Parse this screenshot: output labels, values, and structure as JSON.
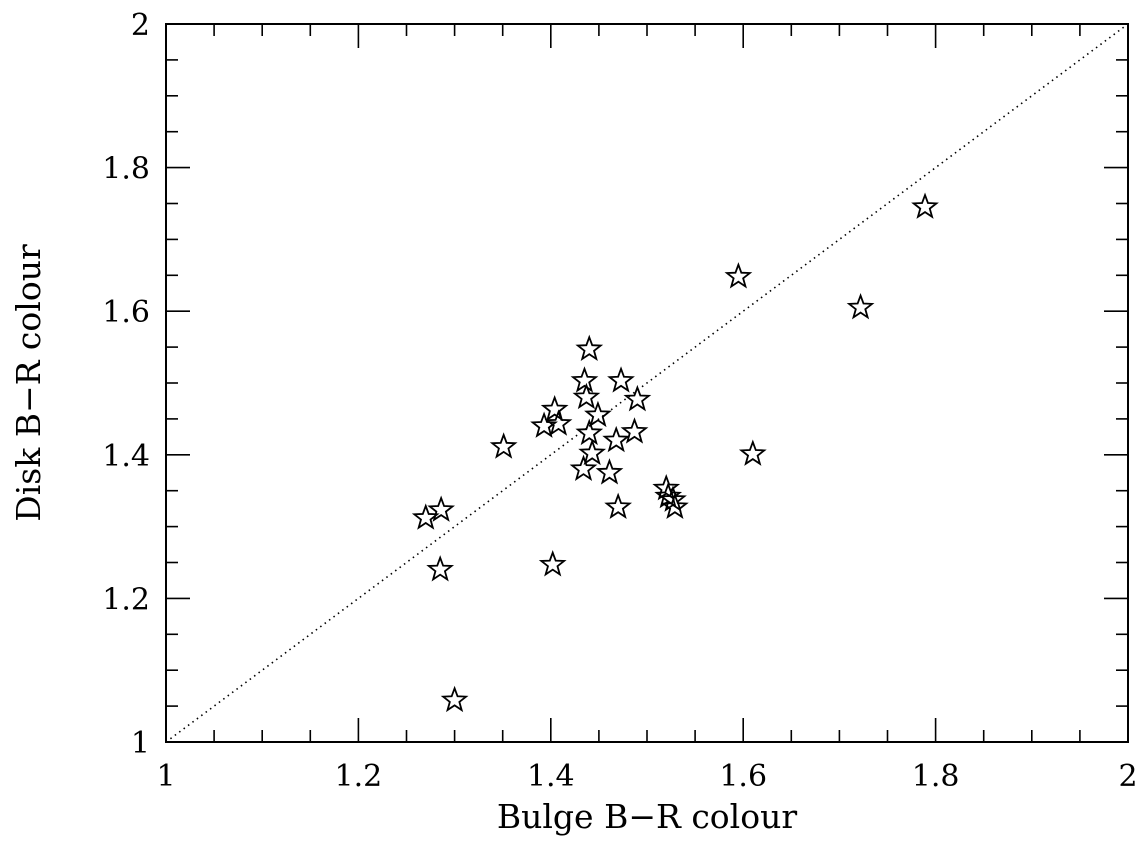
{
  "chart_data": {
    "type": "scatter",
    "title": "",
    "xlabel": "Bulge B−R colour",
    "ylabel": "Disk B−R colour",
    "xlim": [
      1,
      2
    ],
    "ylim": [
      1,
      2
    ],
    "x_major_ticks": [
      1,
      1.2,
      1.4,
      1.6,
      1.8,
      2
    ],
    "y_major_ticks": [
      1,
      1.2,
      1.4,
      1.6,
      1.8,
      2
    ],
    "x_tick_labels": [
      "1",
      "1.2",
      "1.4",
      "1.6",
      "1.8",
      "2"
    ],
    "y_tick_labels": [
      "1",
      "1.2",
      "1.4",
      "1.6",
      "1.8",
      "2"
    ],
    "minor_tick_step": 0.05,
    "grid": false,
    "marker": "open-star",
    "reference_line": {
      "style": "dotted",
      "x": [
        1,
        2
      ],
      "y": [
        1,
        2
      ]
    },
    "points": [
      {
        "x": 1.789,
        "y": 1.745
      },
      {
        "x": 1.595,
        "y": 1.648
      },
      {
        "x": 1.722,
        "y": 1.605
      },
      {
        "x": 1.44,
        "y": 1.547
      },
      {
        "x": 1.435,
        "y": 1.503
      },
      {
        "x": 1.473,
        "y": 1.503
      },
      {
        "x": 1.437,
        "y": 1.48
      },
      {
        "x": 1.49,
        "y": 1.477
      },
      {
        "x": 1.404,
        "y": 1.463
      },
      {
        "x": 1.449,
        "y": 1.455
      },
      {
        "x": 1.393,
        "y": 1.44
      },
      {
        "x": 1.408,
        "y": 1.443
      },
      {
        "x": 1.44,
        "y": 1.43
      },
      {
        "x": 1.487,
        "y": 1.432
      },
      {
        "x": 1.468,
        "y": 1.42
      },
      {
        "x": 1.351,
        "y": 1.411
      },
      {
        "x": 1.443,
        "y": 1.402
      },
      {
        "x": 1.61,
        "y": 1.401
      },
      {
        "x": 1.434,
        "y": 1.38
      },
      {
        "x": 1.461,
        "y": 1.375
      },
      {
        "x": 1.52,
        "y": 1.353
      },
      {
        "x": 1.522,
        "y": 1.342
      },
      {
        "x": 1.527,
        "y": 1.337
      },
      {
        "x": 1.47,
        "y": 1.327
      },
      {
        "x": 1.529,
        "y": 1.327
      },
      {
        "x": 1.286,
        "y": 1.323
      },
      {
        "x": 1.27,
        "y": 1.312
      },
      {
        "x": 1.285,
        "y": 1.24
      },
      {
        "x": 1.402,
        "y": 1.247
      },
      {
        "x": 1.3,
        "y": 1.058
      }
    ]
  }
}
